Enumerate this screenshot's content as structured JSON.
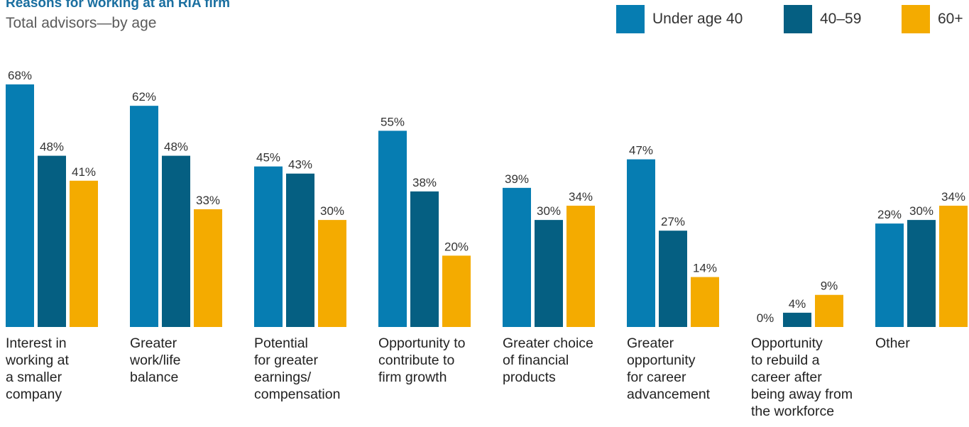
{
  "chart_data": {
    "type": "bar",
    "title": "Reasons for working at an RIA firm",
    "subtitle": "Total advisors—by age",
    "categories": [
      "Interest in working at a smaller company",
      "Greater work/life balance",
      "Potential for greater earnings/ compensation",
      "Opportunity to contribute to firm growth",
      "Greater choice of financial products",
      "Greater opportunity for career advancement",
      "Opportunity to rebuild a career after being away from the workforce",
      "Other"
    ],
    "category_lines": [
      [
        "Interest in",
        "working at",
        "a smaller",
        "company"
      ],
      [
        "Greater",
        "work/life",
        "balance"
      ],
      [
        "Potential",
        "for greater",
        "earnings/",
        "compensation"
      ],
      [
        "Opportunity to",
        "contribute to",
        "firm growth"
      ],
      [
        "Greater choice",
        "of financial",
        "products"
      ],
      [
        "Greater",
        "opportunity",
        "for career",
        "advancement"
      ],
      [
        "Opportunity",
        "to rebuild a",
        "career after",
        "being away from",
        "the workforce"
      ],
      [
        "Other"
      ]
    ],
    "series": [
      {
        "name": "Under age 40",
        "color": "#067db2",
        "values": [
          68,
          62,
          45,
          55,
          39,
          47,
          0,
          29
        ]
      },
      {
        "name": "40–59",
        "color": "#055f82",
        "values": [
          48,
          48,
          43,
          38,
          30,
          27,
          4,
          30
        ]
      },
      {
        "name": "60+",
        "color": "#f4ab00",
        "values": [
          41,
          33,
          30,
          20,
          34,
          14,
          9,
          34
        ]
      }
    ],
    "value_suffix": "%",
    "ylim": [
      0,
      70
    ],
    "xlabel": "",
    "ylabel": "",
    "grid": false,
    "legend_position": "top-right"
  }
}
